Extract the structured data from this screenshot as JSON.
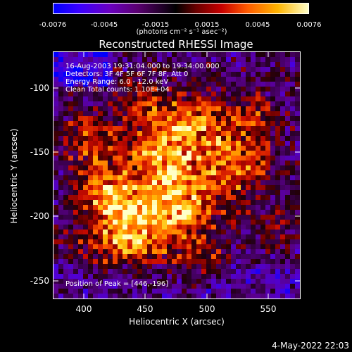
{
  "colorbar": {
    "ticks": [
      "-0.0076",
      "-0.0045",
      "-0.0015",
      "0.0015",
      "0.0045",
      "0.0076"
    ],
    "units": "(photons cm⁻² s⁻¹ asec⁻²)"
  },
  "title": "Reconstructed RHESSI Image",
  "info": {
    "line1": "16-Aug-2003 19:31:04.000 to 19:34:00.000",
    "line2": "Detectors: 3F 4F 5F 6F 7F 8F, Att 0",
    "line3": "Energy Range: 6.0 - 12.0 keV",
    "line4": "Clean     Total counts: 1.10E+04",
    "peak": "Position of Peak = [446,-196]"
  },
  "axes": {
    "xlabel": "Heliocentric X (arcsec)",
    "ylabel": "Heliocentric Y (arcsec)",
    "xticks": [
      "400",
      "450",
      "500",
      "550"
    ],
    "yticks": [
      "-100",
      "-150",
      "-200",
      "-250"
    ]
  },
  "footer": "4-May-2022 22:03"
}
